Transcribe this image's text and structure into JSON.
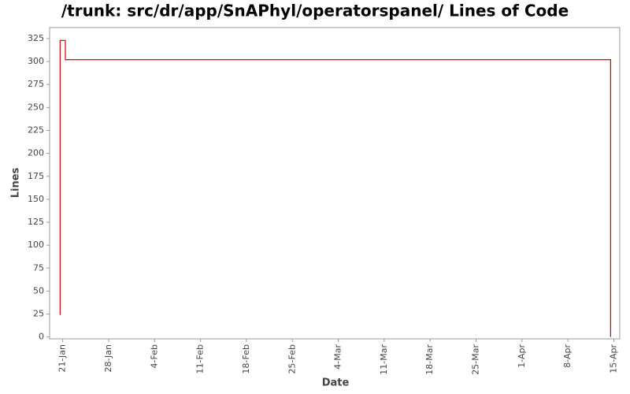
{
  "chart_data": {
    "type": "line",
    "title": "/trunk: src/dr/app/SnAPhyl/operatorspanel/ Lines of Code",
    "x_label": "Date",
    "y_label": "Lines",
    "step": "post",
    "x": [
      20.6,
      20.6,
      21.4,
      104.5
    ],
    "series": [
      {
        "name": "Lines",
        "color": "#cc0000",
        "values": [
          24,
          323,
          302,
          0
        ]
      }
    ],
    "xlim": [
      19,
      105.9
    ],
    "xticks": [
      {
        "value": 21,
        "label": "21-Jan"
      },
      {
        "value": 28,
        "label": "28-Jan"
      },
      {
        "value": 35,
        "label": "4-Feb"
      },
      {
        "value": 42,
        "label": "11-Feb"
      },
      {
        "value": 49,
        "label": "18-Feb"
      },
      {
        "value": 56,
        "label": "25-Feb"
      },
      {
        "value": 63,
        "label": "4-Mar"
      },
      {
        "value": 70,
        "label": "11-Mar"
      },
      {
        "value": 77,
        "label": "18-Mar"
      },
      {
        "value": 84,
        "label": "25-Mar"
      },
      {
        "value": 91,
        "label": "1-Apr"
      },
      {
        "value": 98,
        "label": "8-Apr"
      },
      {
        "value": 105,
        "label": "15-Apr"
      }
    ],
    "ylim": [
      -2,
      337
    ],
    "yticks": [
      0,
      25,
      50,
      75,
      100,
      125,
      150,
      175,
      200,
      225,
      250,
      275,
      300,
      325
    ]
  }
}
